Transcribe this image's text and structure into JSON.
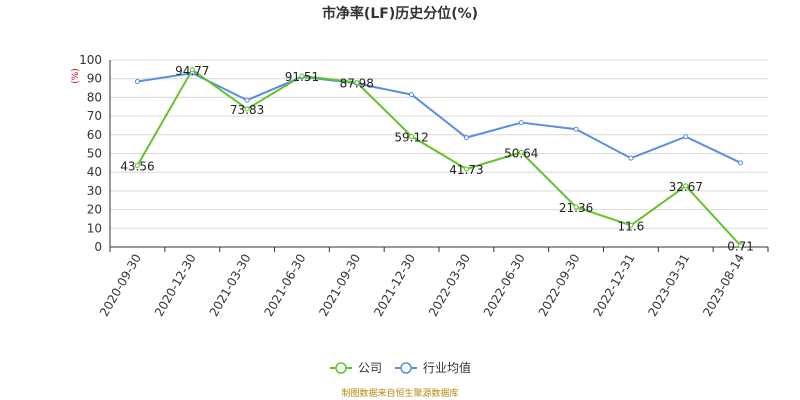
{
  "chart_data": {
    "type": "line",
    "title": "市净率(LF)历史分位(%)",
    "unit_label": "(%)",
    "categories": [
      "2020-09-30",
      "2020-12-30",
      "2021-03-30",
      "2021-06-30",
      "2021-09-30",
      "2021-12-30",
      "2022-03-30",
      "2022-06-30",
      "2022-09-30",
      "2022-12-31",
      "2023-03-31",
      "2023-08-14"
    ],
    "ylim": [
      0,
      100
    ],
    "yticks": [
      0,
      10,
      20,
      30,
      40,
      50,
      60,
      70,
      80,
      90,
      100
    ],
    "grid": true,
    "legend_position": "bottom-center",
    "series": [
      {
        "name": "公司",
        "color": "#62c42a",
        "values": [
          43.56,
          94.77,
          73.83,
          91.51,
          87.98,
          59.12,
          41.73,
          50.64,
          21.36,
          11.6,
          32.67,
          0.71
        ],
        "labels": [
          "43.56",
          "94.77",
          "73.83",
          "91.51",
          "87.98",
          "59.12",
          "41.73",
          "50.64",
          "21.36",
          "11.6",
          "32.67",
          "0.71"
        ]
      },
      {
        "name": "行业均值",
        "color": "#5a8ee0",
        "values": [
          88.5,
          93.0,
          78.5,
          91.0,
          87.5,
          81.5,
          58.5,
          66.5,
          63.0,
          47.5,
          59.0,
          45.0
        ]
      }
    ],
    "source": "制图数据来自恒生聚源数据库"
  }
}
